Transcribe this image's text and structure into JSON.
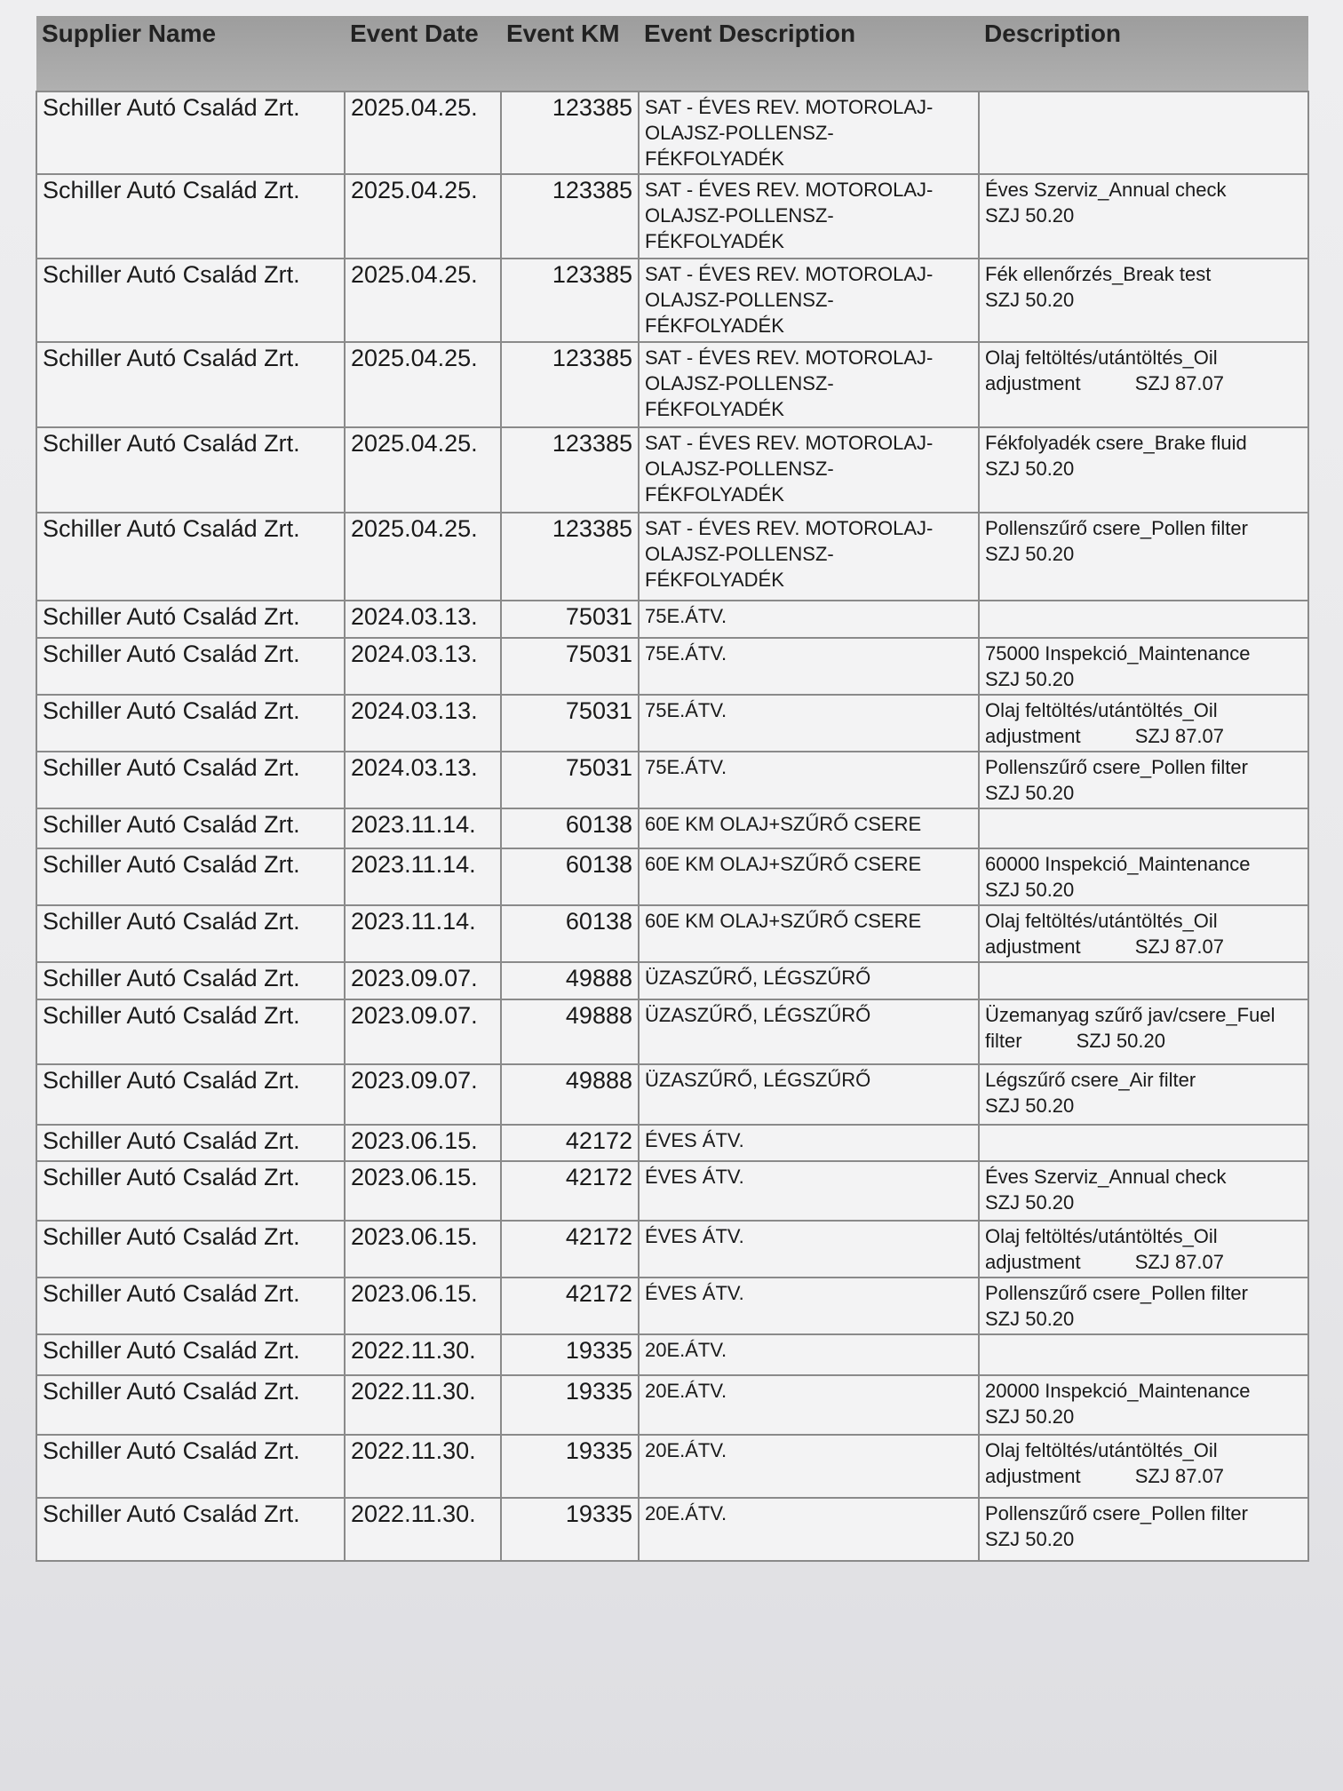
{
  "headers": [
    "Supplier Name",
    "Event Date",
    "Event KM",
    "Event Description",
    "Description"
  ],
  "rows": [
    {
      "supplier": "Schiller Autó Család Zrt.",
      "date": "2025.04.25.",
      "km": "123385",
      "event": "SAT - ÉVES REV. MOTOROLAJ-\nOLAJSZ-POLLENSZ-\nFÉKFOLYADÉK",
      "desc": ""
    },
    {
      "supplier": "Schiller Autó Család Zrt.",
      "date": "2025.04.25.",
      "km": "123385",
      "event": "SAT - ÉVES REV. MOTOROLAJ-\nOLAJSZ-POLLENSZ-\nFÉKFOLYADÉK",
      "desc": "Éves Szerviz_Annual check\nSZJ 50.20"
    },
    {
      "supplier": "Schiller Autó Család Zrt.",
      "date": "2025.04.25.",
      "km": "123385",
      "event": "SAT - ÉVES REV. MOTOROLAJ-\nOLAJSZ-POLLENSZ-\nFÉKFOLYADÉK",
      "desc": "Fék ellenőrzés_Break test\nSZJ 50.20"
    },
    {
      "supplier": "Schiller Autó Család Zrt.",
      "date": "2025.04.25.",
      "km": "123385",
      "event": "SAT - ÉVES REV. MOTOROLAJ-\nOLAJSZ-POLLENSZ-\nFÉKFOLYADÉK",
      "desc": "Olaj feltöltés/utántöltés_Oil\nadjustment          SZJ 87.07"
    },
    {
      "supplier": "Schiller Autó Család Zrt.",
      "date": "2025.04.25.",
      "km": "123385",
      "event": "SAT - ÉVES REV. MOTOROLAJ-\nOLAJSZ-POLLENSZ-\nFÉKFOLYADÉK",
      "desc": "Fékfolyadék csere_Brake fluid\nSZJ 50.20"
    },
    {
      "supplier": "Schiller Autó Család Zrt.",
      "date": "2025.04.25.",
      "km": "123385",
      "event": "SAT - ÉVES REV. MOTOROLAJ-\nOLAJSZ-POLLENSZ-\nFÉKFOLYADÉK",
      "desc": "Pollenszűrő csere_Pollen filter\nSZJ 50.20"
    },
    {
      "supplier": "Schiller Autó Család Zrt.",
      "date": "2024.03.13.",
      "km": "75031",
      "event": "75E.ÁTV.",
      "desc": ""
    },
    {
      "supplier": "Schiller Autó Család Zrt.",
      "date": "2024.03.13.",
      "km": "75031",
      "event": "75E.ÁTV.",
      "desc": "75000 Inspekció_Maintenance\nSZJ 50.20"
    },
    {
      "supplier": "Schiller Autó Család Zrt.",
      "date": "2024.03.13.",
      "km": "75031",
      "event": "75E.ÁTV.",
      "desc": "Olaj feltöltés/utántöltés_Oil\nadjustment          SZJ 87.07"
    },
    {
      "supplier": "Schiller Autó Család Zrt.",
      "date": "2024.03.13.",
      "km": "75031",
      "event": "75E.ÁTV.",
      "desc": "Pollenszűrő csere_Pollen filter\nSZJ 50.20"
    },
    {
      "supplier": "Schiller Autó Család Zrt.",
      "date": "2023.11.14.",
      "km": "60138",
      "event": "60E KM OLAJ+SZŰRŐ CSERE",
      "desc": ""
    },
    {
      "supplier": "Schiller Autó Család Zrt.",
      "date": "2023.11.14.",
      "km": "60138",
      "event": "60E KM OLAJ+SZŰRŐ CSERE",
      "desc": "60000 Inspekció_Maintenance\nSZJ 50.20"
    },
    {
      "supplier": "Schiller Autó Család Zrt.",
      "date": "2023.11.14.",
      "km": "60138",
      "event": "60E KM OLAJ+SZŰRŐ CSERE",
      "desc": "Olaj feltöltés/utántöltés_Oil\nadjustment          SZJ 87.07"
    },
    {
      "supplier": "Schiller Autó Család Zrt.",
      "date": "2023.09.07.",
      "km": "49888",
      "event": "ÜZASZŰRŐ, LÉGSZŰRŐ",
      "desc": ""
    },
    {
      "supplier": "Schiller Autó Család Zrt.",
      "date": "2023.09.07.",
      "km": "49888",
      "event": "ÜZASZŰRŐ, LÉGSZŰRŐ",
      "desc": "Üzemanyag szűrő jav/csere_Fuel\nfilter          SZJ 50.20"
    },
    {
      "supplier": "Schiller Autó Család Zrt.",
      "date": "2023.09.07.",
      "km": "49888",
      "event": "ÜZASZŰRŐ, LÉGSZŰRŐ",
      "desc": "Légszűrő csere_Air filter\nSZJ 50.20"
    },
    {
      "supplier": "Schiller Autó Család Zrt.",
      "date": "2023.06.15.",
      "km": "42172",
      "event": "ÉVES ÁTV.",
      "desc": ""
    },
    {
      "supplier": "Schiller Autó Család Zrt.",
      "date": "2023.06.15.",
      "km": "42172",
      "event": "ÉVES ÁTV.",
      "desc": "Éves Szerviz_Annual check\nSZJ 50.20"
    },
    {
      "supplier": "Schiller Autó Család Zrt.",
      "date": "2023.06.15.",
      "km": "42172",
      "event": "ÉVES ÁTV.",
      "desc": "Olaj feltöltés/utántöltés_Oil\nadjustment          SZJ 87.07"
    },
    {
      "supplier": "Schiller Autó Család Zrt.",
      "date": "2023.06.15.",
      "km": "42172",
      "event": "ÉVES ÁTV.",
      "desc": "Pollenszűrő csere_Pollen filter\nSZJ 50.20"
    },
    {
      "supplier": "Schiller Autó Család Zrt.",
      "date": "2022.11.30.",
      "km": "19335",
      "event": "20E.ÁTV.",
      "desc": ""
    },
    {
      "supplier": "Schiller Autó Család Zrt.",
      "date": "2022.11.30.",
      "km": "19335",
      "event": "20E.ÁTV.",
      "desc": "20000 Inspekció_Maintenance\nSZJ 50.20"
    },
    {
      "supplier": "Schiller Autó Család Zrt.",
      "date": "2022.11.30.",
      "km": "19335",
      "event": "20E.ÁTV.",
      "desc": "Olaj feltöltés/utántöltés_Oil\nadjustment          SZJ 87.07"
    },
    {
      "supplier": "Schiller Autó Család Zrt.",
      "date": "2022.11.30.",
      "km": "19335",
      "event": "20E.ÁTV.",
      "desc": "Pollenszűrő csere_Pollen filter\nSZJ 50.20"
    }
  ]
}
